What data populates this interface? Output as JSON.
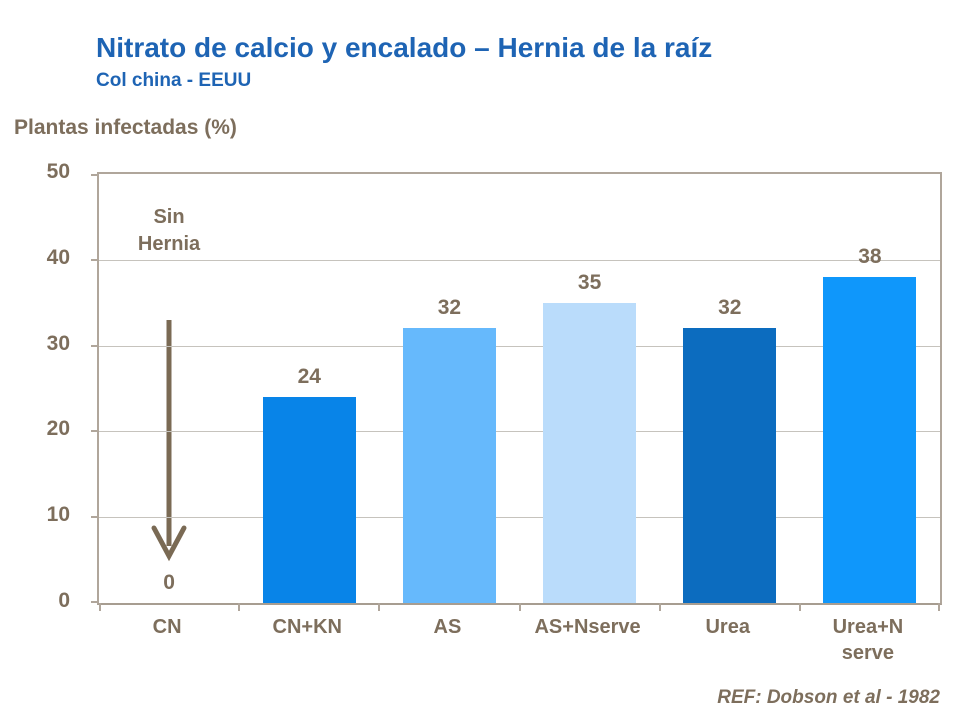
{
  "slide": {
    "title": "Nitrato de calcio y encalado – Hernia de la raíz",
    "subtitle": "Col china - EEUU",
    "axis_title": "Plantas infectadas (%)",
    "reference": "REF: Dobson et al - 1982",
    "annotation": {
      "line1": "Sin",
      "line2": "Hernia"
    }
  },
  "colors": {
    "title_blue": "#1e64b4",
    "text_brown": "#7d6e5c",
    "axis_frame": "#b0a69b",
    "gridline": "#c6c3bd",
    "arrow": "#7a6a54"
  },
  "chart_data": {
    "type": "bar",
    "title": "Nitrato de calcio y encalado – Hernia de la raíz",
    "subtitle": "Col china - EEUU",
    "categories": [
      "CN",
      "CN+KN",
      "AS",
      "AS+Nserve",
      "Urea",
      "Urea+Nserve"
    ],
    "category_display": [
      "CN",
      "CN+KN",
      "AS",
      "AS+Nserve",
      "Urea",
      "Urea+N\nserve"
    ],
    "values": [
      0,
      24,
      32,
      35,
      32,
      38
    ],
    "value_labels": [
      "0",
      "24",
      "32",
      "35",
      "32",
      "38"
    ],
    "bar_colors": [
      "#0884e8",
      "#0884e8",
      "#66b9fc",
      "#badcfb",
      "#0c6cbf",
      "#0f97fb"
    ],
    "xlabel": "",
    "ylabel": "Plantas infectadas (%)",
    "ylim": [
      0,
      50
    ],
    "yticks": [
      0,
      10,
      20,
      30,
      40,
      50
    ],
    "grid": true,
    "legend": false,
    "annotation_text": "Sin Hernia (arrow pointing down to 0 on CN bar)"
  }
}
